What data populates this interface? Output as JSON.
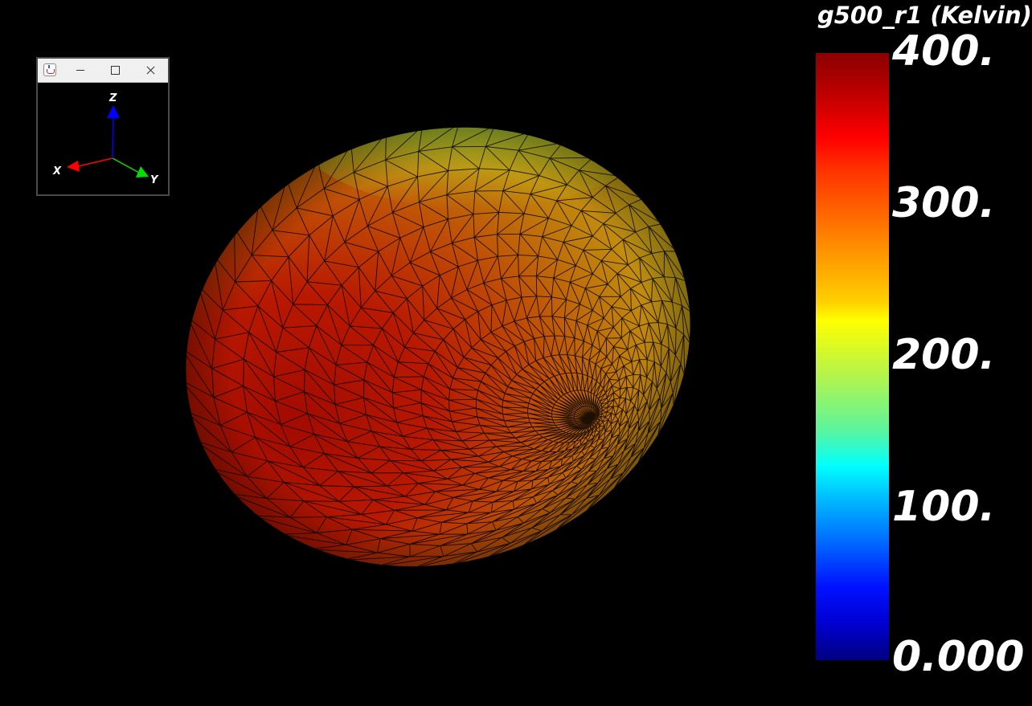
{
  "colorbar": {
    "title": "g500_r1 (Kelvin)",
    "labels": [
      "400.",
      "300.",
      "200.",
      "100.",
      "0.000"
    ]
  },
  "triad": {
    "axes": {
      "x": "X",
      "y": "Y",
      "z": "Z"
    },
    "colors": {
      "x": "#ff0000",
      "y": "#00e000",
      "z": "#0000ff"
    }
  },
  "surface": {
    "shape": "ellipsoid",
    "colormap": "jet",
    "colors": {
      "hot": "#a80e00",
      "mid": "#c77a10",
      "warm": "#c9a818",
      "top": "#33c89a"
    }
  }
}
